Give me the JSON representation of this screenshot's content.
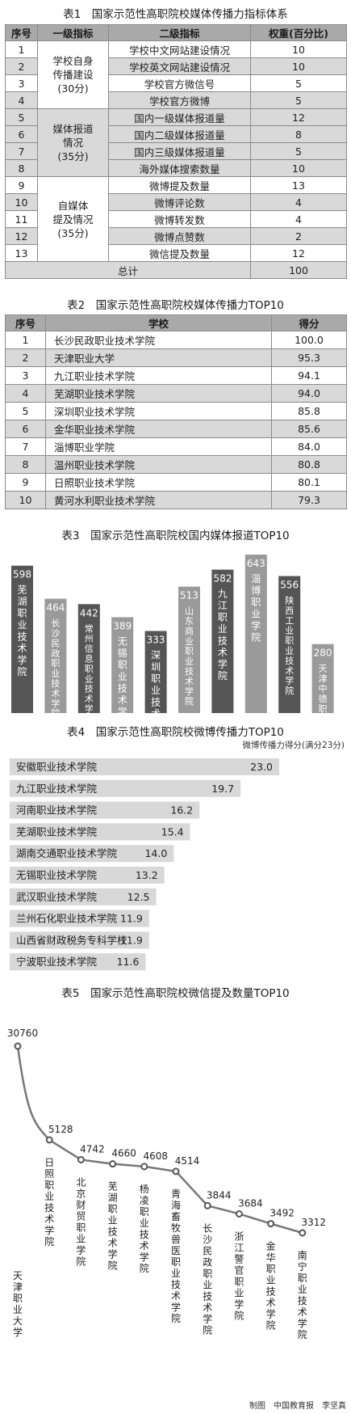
{
  "table1": {
    "title": "表1　国家示范性高职院校媒体传播力指标体系",
    "headers": [
      "序号",
      "一级指标",
      "二级指标",
      "权重(百分比)"
    ],
    "groups": [
      {
        "label": [
          "学校自身",
          "传播建设",
          "(30分)"
        ],
        "start": 0,
        "span": 4,
        "shaded": false
      },
      {
        "label": [
          "媒体报道",
          "情况",
          "(35分)"
        ],
        "start": 4,
        "span": 4,
        "shaded": true
      },
      {
        "label": [
          "自媒体",
          "提及情况",
          "(35分)"
        ],
        "start": 8,
        "span": 5,
        "shaded": false
      }
    ],
    "rows": [
      {
        "no": "1",
        "item": "学校中文网站建设情况",
        "weight": "10"
      },
      {
        "no": "2",
        "item": "学校英文网站建设情况",
        "weight": "10"
      },
      {
        "no": "3",
        "item": "学校官方微信号",
        "weight": "5"
      },
      {
        "no": "4",
        "item": "学校官方微博",
        "weight": "5"
      },
      {
        "no": "5",
        "item": "国内一级媒体报道量",
        "weight": "12"
      },
      {
        "no": "6",
        "item": "国内二级媒体报道量",
        "weight": "8"
      },
      {
        "no": "7",
        "item": "国内三级媒体报道量",
        "weight": "5"
      },
      {
        "no": "8",
        "item": "海外媒体搜索数量",
        "weight": "10"
      },
      {
        "no": "9",
        "item": "微博提及数量",
        "weight": "13"
      },
      {
        "no": "10",
        "item": "微博评论数",
        "weight": "4"
      },
      {
        "no": "11",
        "item": "微博转发数",
        "weight": "4"
      },
      {
        "no": "12",
        "item": "微博点赞数",
        "weight": "2"
      },
      {
        "no": "13",
        "item": "微信提及数量",
        "weight": "12"
      }
    ],
    "total_label": "总计",
    "total_value": "100"
  },
  "table2": {
    "title": "表2　国家示范性高职院校媒体传播力TOP10",
    "headers": [
      "序号",
      "学校",
      "得分"
    ],
    "rows": [
      {
        "no": "1",
        "school": "长沙民政职业技术学院",
        "score": "100.0"
      },
      {
        "no": "2",
        "school": "天津职业大学",
        "score": "95.3"
      },
      {
        "no": "3",
        "school": "九江职业技术学院",
        "score": "94.1"
      },
      {
        "no": "4",
        "school": "芜湖职业技术学院",
        "score": "94.0"
      },
      {
        "no": "5",
        "school": "深圳职业技术学院",
        "score": "85.8"
      },
      {
        "no": "6",
        "school": "金华职业技术学院",
        "score": "85.6"
      },
      {
        "no": "7",
        "school": "淄博职业学院",
        "score": "84.0"
      },
      {
        "no": "8",
        "school": "温州职业技术学院",
        "score": "80.8"
      },
      {
        "no": "9",
        "school": "日照职业技术学院",
        "score": "80.1"
      },
      {
        "no": "10",
        "school": "黄河水利职业技术学院",
        "score": "79.3"
      }
    ]
  },
  "chart_data": [
    {
      "type": "bar",
      "title": "表3　国家示范性高职院校国内媒体报道TOP10",
      "categories": [
        "芜湖职业技术学院",
        "长沙民政职业技术学院",
        "常州信息职业技术学院",
        "无锡职业技术学院",
        "深圳职业技术学院",
        "山东商业职业技术学院",
        "九江职业技术学院",
        "淄博职业学院",
        "陕西工业职业技术学院",
        "天津中德职业技术学院"
      ],
      "values": [
        598,
        464,
        442,
        389,
        333,
        513,
        582,
        643,
        556,
        280
      ],
      "colors": {
        "dark": "#555555",
        "light": "#9a9a9a",
        "text": "#ffffff"
      }
    },
    {
      "type": "bar",
      "orientation": "horizontal",
      "title": "表4　国家示范性高职院校微博传播力TOP10",
      "note": "微博传播力得分(满分23分)",
      "categories": [
        "安徽职业技术学院",
        "九江职业技术学院",
        "河南职业技术学院",
        "芜湖职业技术学院",
        "湖南交通职业技术学院",
        "无锡职业技术学院",
        "武汉职业技术学院",
        "兰州石化职业技术学院",
        "山西省财政税务专科学校",
        "宁波职业技术学院"
      ],
      "values": [
        23.0,
        19.7,
        16.2,
        15.4,
        14.0,
        13.2,
        12.5,
        11.9,
        11.9,
        11.6
      ],
      "value_labels": [
        "23.0",
        "19.7",
        "16.2",
        "15.4",
        "14.0",
        "13.2",
        "12.5",
        "11.9",
        "11.9",
        "11.6"
      ],
      "xlim": [
        0,
        23
      ],
      "colors": {
        "bar": "#d8d8d8"
      }
    },
    {
      "type": "line",
      "title": "表5　国家示范性高职院校微信提及数量TOP10",
      "categories": [
        "天津职业大学",
        "日照职业技术学院",
        "北京财贸职业学院",
        "芜湖职业技术学院",
        "杨凌职业技术学院",
        "青海畜牧兽医职业技术学院",
        "长沙民政职业技术学院",
        "浙江警官职业学院",
        "金华职业技术学院",
        "南宁职业技术学院"
      ],
      "values": [
        30760,
        5128,
        4742,
        4660,
        4608,
        4514,
        3844,
        3684,
        3492,
        3312
      ],
      "colors": {
        "line": "#777777",
        "marker": "#555555"
      }
    }
  ],
  "credits": "制图　中国教育报　李坚真"
}
